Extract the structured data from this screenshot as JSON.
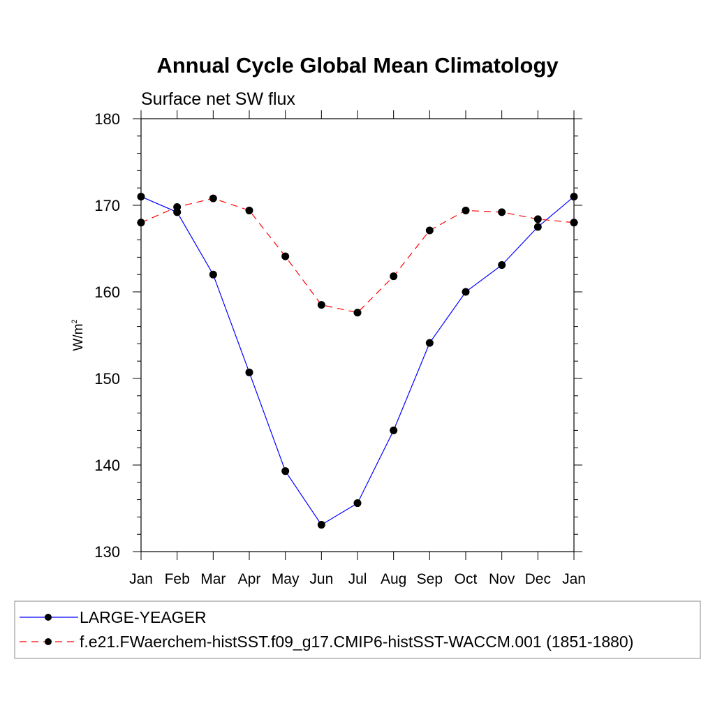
{
  "chart_data": {
    "type": "line",
    "title": "Annual Cycle Global Mean Climatology",
    "subtitle": "Surface net SW flux",
    "ylabel": "W/m",
    "ylabel_superscript": "2",
    "xlabel": "",
    "categories": [
      "Jan",
      "Feb",
      "Mar",
      "Apr",
      "May",
      "Jun",
      "Jul",
      "Aug",
      "Sep",
      "Oct",
      "Nov",
      "Dec",
      "Jan"
    ],
    "ylim": [
      130,
      180
    ],
    "yticks": [
      130,
      140,
      150,
      160,
      170,
      180
    ],
    "grid": false,
    "legend_position": "bottom",
    "series": [
      {
        "name": "LARGE-YEAGER",
        "color": "#0000ff",
        "line_style": "solid",
        "marker": "filled-circle",
        "values": [
          171.0,
          169.2,
          162.0,
          150.7,
          139.3,
          133.1,
          135.6,
          144.0,
          154.1,
          160.0,
          163.1,
          167.5,
          171.0
        ]
      },
      {
        "name": "f.e21.FWaerchem-histSST.f09_g17.CMIP6-histSST-WACCM.001 (1851-1880)",
        "color": "#ff0000",
        "line_style": "dashed",
        "marker": "filled-circle",
        "values": [
          168.0,
          169.8,
          170.8,
          169.4,
          164.1,
          158.5,
          157.6,
          161.8,
          167.1,
          169.4,
          169.2,
          168.4,
          168.0
        ]
      }
    ]
  }
}
